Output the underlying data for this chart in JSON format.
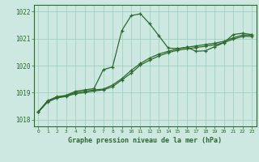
{
  "title": "Graphe pression niveau de la mer (hPa)",
  "background_color": "#cce8e0",
  "grid_color": "#99ccbb",
  "line_color": "#2d6a2d",
  "xlim": [
    -0.5,
    23.5
  ],
  "ylim": [
    1017.75,
    1022.25
  ],
  "yticks": [
    1018,
    1019,
    1020,
    1021,
    1022
  ],
  "xtick_labels": [
    "0",
    "1",
    "2",
    "3",
    "4",
    "5",
    "6",
    "7",
    "8",
    "9",
    "10",
    "11",
    "12",
    "13",
    "14",
    "15",
    "16",
    "17",
    "18",
    "19",
    "20",
    "21",
    "22",
    "23"
  ],
  "series1_x": [
    0,
    1,
    2,
    3,
    4,
    5,
    6,
    7,
    8,
    9,
    10,
    11,
    12,
    13,
    14,
    15,
    16,
    17,
    18,
    19,
    20,
    21,
    22,
    23
  ],
  "series1_y": [
    1018.3,
    1018.7,
    1018.85,
    1018.9,
    1019.05,
    1019.1,
    1019.15,
    1019.85,
    1019.95,
    1021.3,
    1021.85,
    1021.92,
    1021.55,
    1021.1,
    1020.65,
    1020.63,
    1020.68,
    1020.53,
    1020.55,
    1020.7,
    1020.85,
    1021.15,
    1021.2,
    1021.15
  ],
  "series2_x": [
    0,
    1,
    2,
    3,
    4,
    5,
    6,
    7,
    8,
    9,
    10,
    11,
    12,
    13,
    14,
    15,
    16,
    17,
    18,
    19,
    20,
    21,
    22,
    23
  ],
  "series2_y": [
    1018.28,
    1018.68,
    1018.83,
    1018.88,
    1019.0,
    1019.05,
    1019.1,
    1019.13,
    1019.28,
    1019.52,
    1019.82,
    1020.08,
    1020.28,
    1020.43,
    1020.53,
    1020.62,
    1020.68,
    1020.73,
    1020.78,
    1020.83,
    1020.9,
    1021.03,
    1021.13,
    1021.13
  ],
  "series3_x": [
    0,
    1,
    2,
    3,
    4,
    5,
    6,
    7,
    8,
    9,
    10,
    11,
    12,
    13,
    14,
    15,
    16,
    17,
    18,
    19,
    20,
    21,
    22,
    23
  ],
  "series3_y": [
    1018.28,
    1018.65,
    1018.8,
    1018.86,
    1018.96,
    1019.0,
    1019.06,
    1019.1,
    1019.22,
    1019.47,
    1019.72,
    1020.02,
    1020.2,
    1020.36,
    1020.48,
    1020.57,
    1020.62,
    1020.67,
    1020.72,
    1020.77,
    1020.85,
    1020.98,
    1021.08,
    1021.08
  ]
}
